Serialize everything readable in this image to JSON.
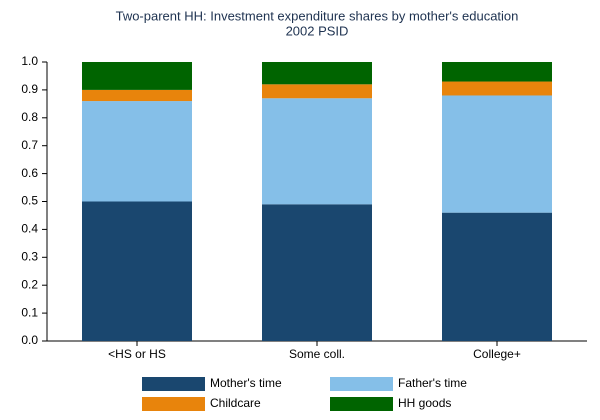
{
  "chart_data": {
    "type": "stacked_bar",
    "title": "Two-parent HH: Investment expenditure shares by mother's education",
    "subtitle": "2002 PSID",
    "categories": [
      "<HS or HS",
      "Some coll.",
      "College+"
    ],
    "series": [
      {
        "name": "Mother's time",
        "color": "#1a476f",
        "values": [
          0.5,
          0.49,
          0.46
        ]
      },
      {
        "name": "Father's time",
        "color": "#85bfe8",
        "values": [
          0.36,
          0.38,
          0.42
        ]
      },
      {
        "name": "Childcare",
        "color": "#e8840c",
        "values": [
          0.04,
          0.05,
          0.05
        ]
      },
      {
        "name": "HH goods",
        "color": "#006400",
        "values": [
          0.1,
          0.08,
          0.07
        ]
      }
    ],
    "ylim": [
      0,
      1
    ],
    "yticks": [
      {
        "value": 0,
        "label": "0.0"
      },
      0.1,
      0.2,
      0.3,
      0.4,
      0.5,
      0.6,
      0.7,
      0.8,
      0.9,
      {
        "value": 1,
        "label": "1.0"
      }
    ],
    "grid": false
  }
}
